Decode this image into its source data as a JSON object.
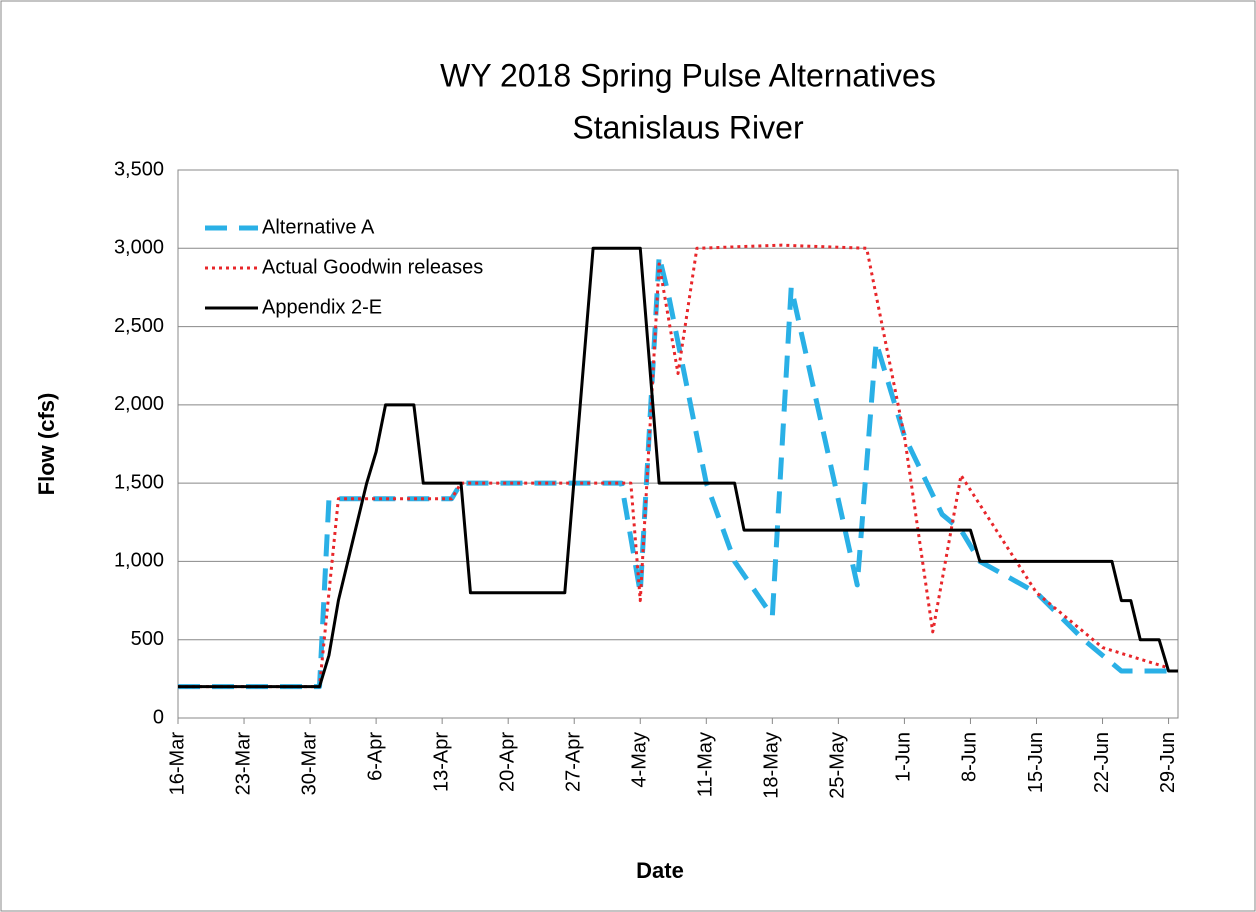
{
  "chart_data": {
    "type": "line",
    "title": "WY 2018 Spring Pulse Alternatives",
    "subtitle": "Stanislaus River",
    "x_label": "Date",
    "y_label": "Flow (cfs)",
    "xlim": [
      "16-Mar",
      "30-Jun"
    ],
    "xticks": [
      "16-Mar",
      "23-Mar",
      "30-Mar",
      "6-Apr",
      "13-Apr",
      "20-Apr",
      "27-Apr",
      "4-May",
      "11-May",
      "18-May",
      "25-May",
      "1-Jun",
      "8-Jun",
      "15-Jun",
      "22-Jun",
      "29-Jun"
    ],
    "ylim": [
      0,
      3500
    ],
    "yticks": [
      0,
      500,
      {
        "value": 1000,
        "label": "1,000"
      },
      {
        "value": 1500,
        "label": "1,500"
      },
      {
        "value": 2000,
        "label": "2,000"
      },
      {
        "value": 2500,
        "label": "2,500"
      },
      {
        "value": 3000,
        "label": "3,000"
      },
      {
        "value": 3500,
        "label": "3,500"
      }
    ],
    "grid": true,
    "legend": "upper left",
    "series": [
      {
        "name": "Alternative A",
        "color": "#2ab0e6",
        "style": "dashed",
        "x": [
          "16-Mar",
          "31-Mar",
          "1-Apr",
          "14-Apr",
          "15-Apr",
          "2-May",
          "4-May",
          "6-May",
          "7-May",
          "11-May",
          "14-May",
          "18-May",
          "20-May",
          "27-May",
          "29-May",
          "1-Jun",
          "5-Jun",
          "7-Jun",
          "9-Jun",
          "15-Jun",
          "20-Jun",
          "24-Jun",
          "30-Jun"
        ],
        "values": [
          200,
          200,
          1400,
          1400,
          1500,
          1500,
          800,
          2950,
          2700,
          1500,
          1000,
          650,
          2750,
          850,
          2400,
          1800,
          1300,
          1200,
          1000,
          800,
          500,
          300,
          300
        ]
      },
      {
        "name": "Actual Goodwin releases",
        "color": "#e8262a",
        "style": "dotted",
        "x": [
          "16-Mar",
          "31-Mar",
          "1-Apr",
          "2-Apr",
          "14-Apr",
          "15-Apr",
          "3-May",
          "4-May",
          "6-May",
          "8-May",
          "10-May",
          "19-May",
          "28-May",
          "1-Jun",
          "4-Jun",
          "7-Jun",
          "15-Jun",
          "22-Jun",
          "29-Jun"
        ],
        "values": [
          200,
          200,
          800,
          1400,
          1400,
          1500,
          1500,
          750,
          2900,
          2200,
          3000,
          3020,
          3000,
          1800,
          550,
          1550,
          800,
          450,
          320
        ]
      },
      {
        "name": "Appendix 2-E",
        "color": "#000000",
        "style": "solid",
        "x": [
          "16-Mar",
          "31-Mar",
          "1-Apr",
          "2-Apr",
          "3-Apr",
          "4-Apr",
          "5-Apr",
          "6-Apr",
          "7-Apr",
          "10-Apr",
          "11-Apr",
          "15-Apr",
          "16-Apr",
          "26-Apr",
          "29-Apr",
          "4-May",
          "6-May",
          "14-May",
          "15-May",
          "8-Jun",
          "9-Jun",
          "23-Jun",
          "24-Jun",
          "25-Jun",
          "26-Jun",
          "28-Jun",
          "29-Jun",
          "30-Jun"
        ],
        "values": [
          200,
          200,
          400,
          750,
          1000,
          1250,
          1500,
          1700,
          2000,
          2000,
          1500,
          1500,
          800,
          800,
          3000,
          3000,
          1500,
          1500,
          1200,
          1200,
          1000,
          1000,
          750,
          750,
          500,
          500,
          300,
          300
        ]
      }
    ]
  }
}
